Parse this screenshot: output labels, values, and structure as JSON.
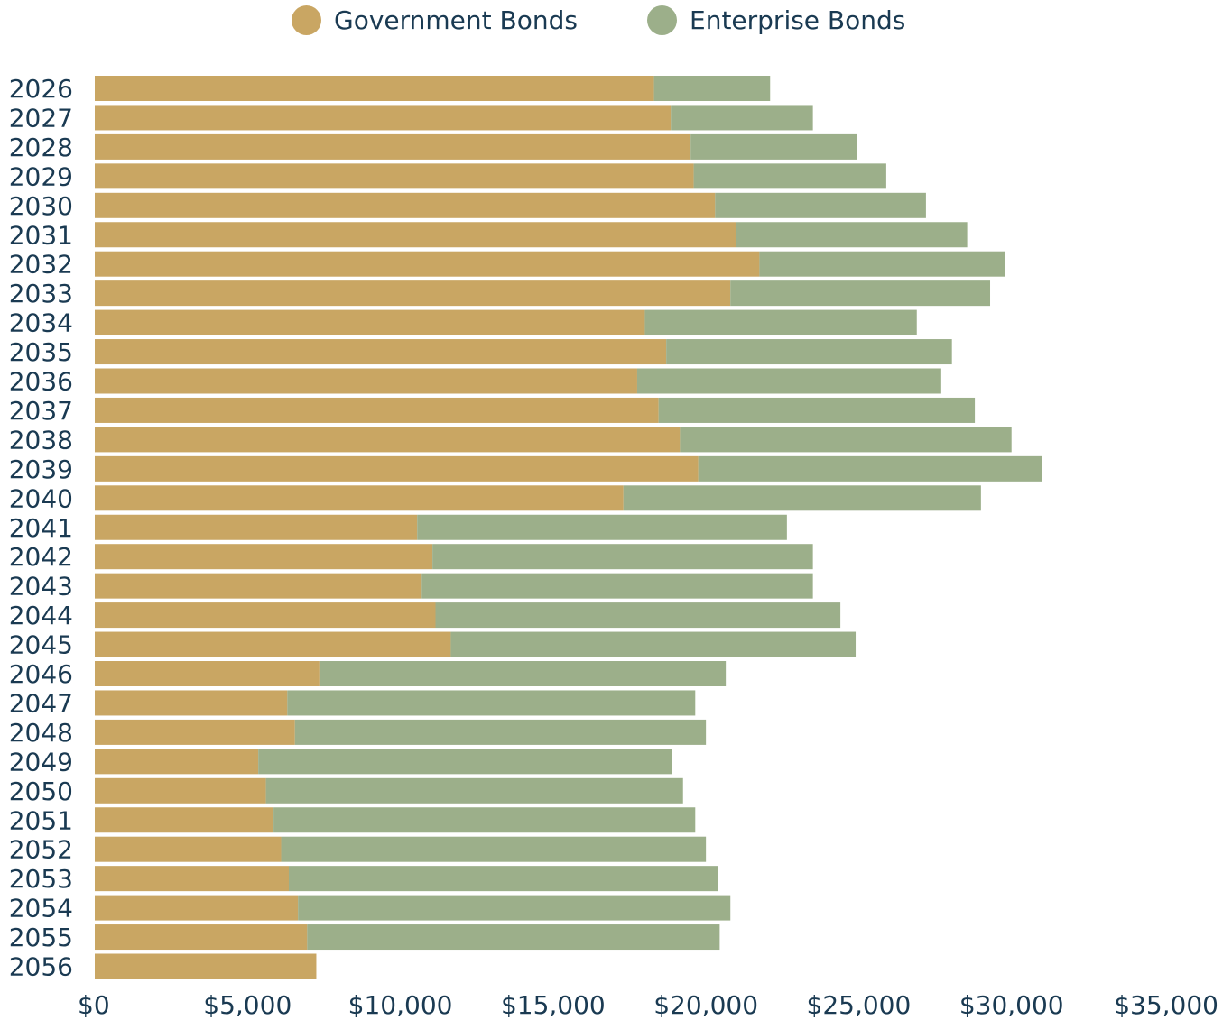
{
  "chart_data": {
    "type": "bar",
    "orientation": "horizontal",
    "stacked": true,
    "categories": [
      "2026",
      "2027",
      "2028",
      "2029",
      "2030",
      "2031",
      "2032",
      "2033",
      "2034",
      "2035",
      "2036",
      "2037",
      "2038",
      "2039",
      "2040",
      "2041",
      "2042",
      "2043",
      "2044",
      "2045",
      "2046",
      "2047",
      "2048",
      "2049",
      "2050",
      "2051",
      "2052",
      "2053",
      "2054",
      "2055",
      "2056"
    ],
    "series": [
      {
        "name": "Government Bonds",
        "color": "#c9a663",
        "values": [
          18300,
          18850,
          19500,
          19600,
          20300,
          21000,
          21750,
          20800,
          18000,
          18700,
          17750,
          18450,
          19150,
          19750,
          17300,
          10550,
          11050,
          10700,
          11150,
          11650,
          7350,
          6300,
          6550,
          5350,
          5600,
          5850,
          6100,
          6350,
          6650,
          6950,
          7250
        ]
      },
      {
        "name": "Enterprise Bonds",
        "color": "#9caf8a",
        "values": [
          3800,
          4650,
          5450,
          6300,
          6900,
          7550,
          8050,
          8500,
          8900,
          9350,
          9950,
          10350,
          10850,
          11250,
          11700,
          12100,
          12450,
          12800,
          13250,
          13250,
          13300,
          13350,
          13450,
          13550,
          13650,
          13800,
          13900,
          14050,
          14150,
          13500,
          0
        ]
      }
    ],
    "xlim": [
      0,
      35000
    ],
    "xticks": [
      0,
      5000,
      10000,
      15000,
      20000,
      25000,
      30000,
      35000
    ],
    "xtick_labels": [
      "$0",
      "$5,000",
      "$10,000",
      "$15,000",
      "$20,000",
      "$25,000",
      "$30,000",
      "$35,000"
    ],
    "title": "",
    "xlabel": "",
    "ylabel": "",
    "grid": false,
    "legend_position": "top-center"
  },
  "colors": {
    "text": "#1a3a52"
  }
}
